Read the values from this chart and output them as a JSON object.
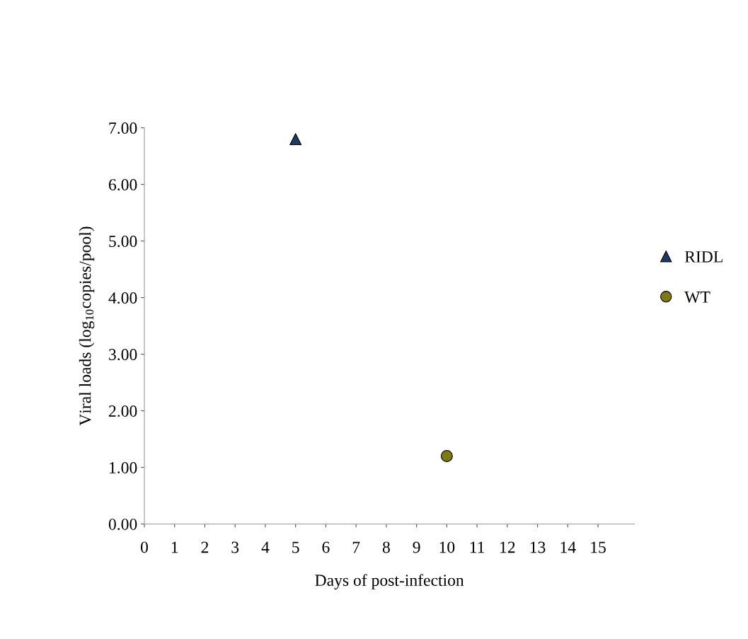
{
  "chart_data": {
    "type": "scatter",
    "xlabel": "Days of post-infection",
    "ylabel": "Viral loads (log$_{10}$copies/pool)",
    "xlim": [
      0,
      16.2
    ],
    "xticks": [
      0,
      1,
      2,
      3,
      4,
      5,
      6,
      7,
      8,
      9,
      10,
      11,
      12,
      13,
      14,
      15
    ],
    "ylim": [
      0,
      7
    ],
    "yticks": [
      {
        "value": 0,
        "label": "0.00"
      },
      {
        "value": 1,
        "label": "1.00"
      },
      {
        "value": 2,
        "label": "2.00"
      },
      {
        "value": 3,
        "label": "3.00"
      },
      {
        "value": 4,
        "label": "4.00"
      },
      {
        "value": 5,
        "label": "5.00"
      },
      {
        "value": 6,
        "label": "6.00"
      },
      {
        "value": 7,
        "label": "7.00"
      }
    ],
    "series": [
      {
        "name": "RIDL",
        "color": "#1b3a64",
        "marker": "triangle",
        "x": [
          5
        ],
        "values": [
          6.8
        ]
      },
      {
        "name": "WT",
        "color": "#7d7a12",
        "marker": "circle",
        "x": [
          10
        ],
        "values": [
          1.2
        ]
      }
    ],
    "grid": false,
    "legend": "right"
  }
}
